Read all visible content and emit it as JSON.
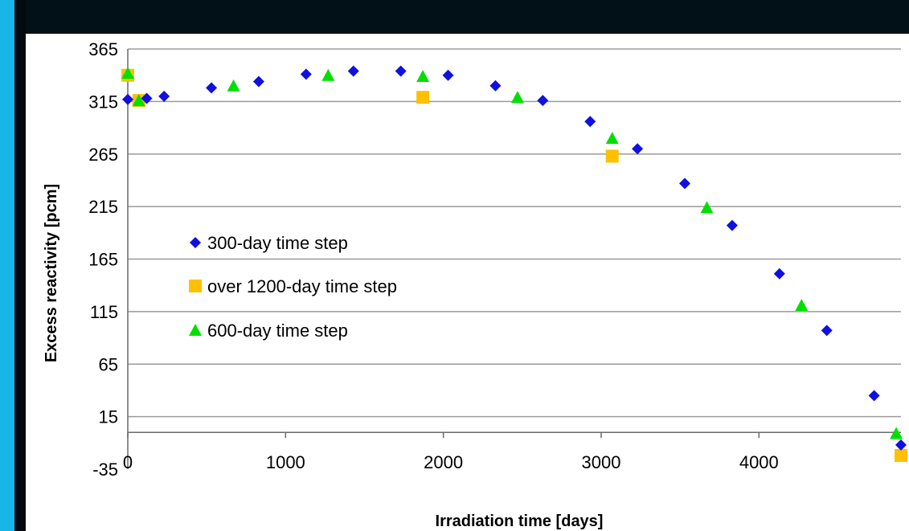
{
  "chart_data": {
    "type": "scatter",
    "xlabel": "Irradiation time [days]",
    "ylabel": "Excess reactivity [pcm]",
    "xlim": [
      0,
      4900
    ],
    "ylim": [
      -35,
      365
    ],
    "x_ticks": [
      "0",
      "1000",
      "2000",
      "3000",
      "4000"
    ],
    "y_ticks": [
      "365",
      "315",
      "265",
      "215",
      "165",
      "115",
      "65",
      "15",
      "-35"
    ],
    "grid": "horizontal",
    "legend_position": "left-center",
    "series": [
      {
        "name": "300-day time step",
        "marker": "diamond",
        "color": "#1010e0",
        "points": [
          {
            "x": 0,
            "y": 317
          },
          {
            "x": 120,
            "y": 318
          },
          {
            "x": 230,
            "y": 320
          },
          {
            "x": 530,
            "y": 328
          },
          {
            "x": 830,
            "y": 334
          },
          {
            "x": 1130,
            "y": 341
          },
          {
            "x": 1430,
            "y": 344
          },
          {
            "x": 1730,
            "y": 344
          },
          {
            "x": 2030,
            "y": 340
          },
          {
            "x": 2330,
            "y": 330
          },
          {
            "x": 2630,
            "y": 316
          },
          {
            "x": 2930,
            "y": 296
          },
          {
            "x": 3230,
            "y": 270
          },
          {
            "x": 3530,
            "y": 237
          },
          {
            "x": 3830,
            "y": 197
          },
          {
            "x": 4130,
            "y": 151
          },
          {
            "x": 4430,
            "y": 97
          },
          {
            "x": 4730,
            "y": 35
          },
          {
            "x": 4900,
            "y": -12
          }
        ]
      },
      {
        "name": "over 1200-day time step",
        "marker": "square",
        "color": "#ffc000",
        "points": [
          {
            "x": 0,
            "y": 340
          },
          {
            "x": 70,
            "y": 316
          },
          {
            "x": 1870,
            "y": 319
          },
          {
            "x": 3070,
            "y": 263
          },
          {
            "x": 4900,
            "y": -22
          }
        ]
      },
      {
        "name": "600-day time step",
        "marker": "triangle",
        "color": "#00e000",
        "points": [
          {
            "x": 0,
            "y": 342
          },
          {
            "x": 70,
            "y": 316
          },
          {
            "x": 670,
            "y": 330
          },
          {
            "x": 1270,
            "y": 340
          },
          {
            "x": 1870,
            "y": 339
          },
          {
            "x": 2470,
            "y": 319
          },
          {
            "x": 3070,
            "y": 280
          },
          {
            "x": 3670,
            "y": 214
          },
          {
            "x": 4270,
            "y": 121
          },
          {
            "x": 4870,
            "y": -1
          }
        ]
      }
    ]
  }
}
